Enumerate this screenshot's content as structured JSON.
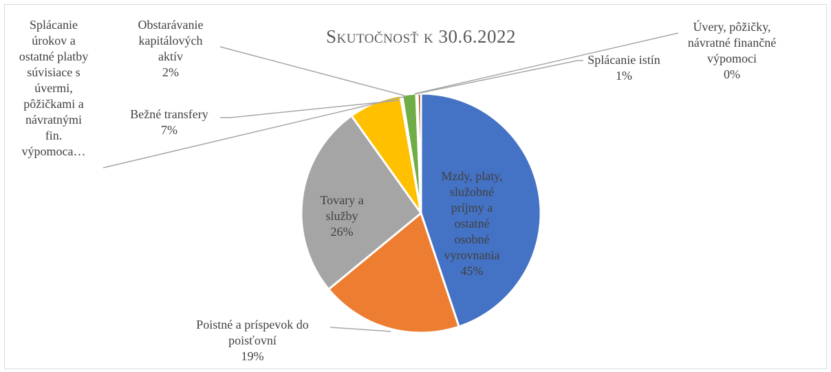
{
  "chart_data": {
    "type": "pie",
    "title": "Skutočnosť k 30.6.2022",
    "slices": [
      {
        "label": "Mzdy, platy, služobné príjmy a ostatné osobné vyrovnania",
        "value": 45,
        "pct_label": "45%",
        "color": "#4472c4"
      },
      {
        "label": "Poistné a príspevok do poisťovní",
        "value": 19,
        "pct_label": "19%",
        "color": "#ed7d31"
      },
      {
        "label": "Tovary a služby",
        "value": 26,
        "pct_label": "26%",
        "color": "#a5a5a5"
      },
      {
        "label": "Bežné transfery",
        "value": 7,
        "pct_label": "7%",
        "color": "#ffc000"
      },
      {
        "label": "Splácanie úrokov a ostatné platby súvisiace s úvermi, pôžičkami a návratnými fin. výpomoca…",
        "value": 0,
        "pct_label": "",
        "color": "#5b9bd5"
      },
      {
        "label": "Obstarávanie kapitálových aktív",
        "value": 2,
        "pct_label": "2%",
        "color": "#70ad47"
      },
      {
        "label": "Úvery, pôžičky, návratné finančné výpomoci",
        "value": 0,
        "pct_label": "0%",
        "color": "#264478"
      },
      {
        "label": "Splácanie istín",
        "value": 1,
        "pct_label": "1%",
        "color": "#9e480e"
      }
    ]
  },
  "labels": {
    "mzdy": [
      "Mzdy, platy,",
      "služobné",
      "príjmy a",
      "ostatné",
      "osobné",
      "vyrovnania",
      "45%"
    ],
    "poistne": [
      "Poistné a príspevok do",
      "poisťovní",
      "19%"
    ],
    "tovary": [
      "Tovary a",
      "služby",
      "26%"
    ],
    "bezne": [
      "Bežné transfery",
      "7%"
    ],
    "splacanie_urokov": [
      "Splácanie",
      "úrokov a",
      "ostatné platby",
      "súvisiace s",
      "úvermi,",
      "pôžičkami a",
      "návratnými",
      "fin.",
      "výpomoca…"
    ],
    "obstaravanie": [
      "Obstarávanie",
      "kapitálových",
      "aktív",
      "2%"
    ],
    "uvery": [
      "Úvery, pôžičky,",
      "návratné finančné",
      "výpomoci",
      "0%"
    ],
    "istiny": [
      "Splácanie istín",
      "1%"
    ]
  }
}
